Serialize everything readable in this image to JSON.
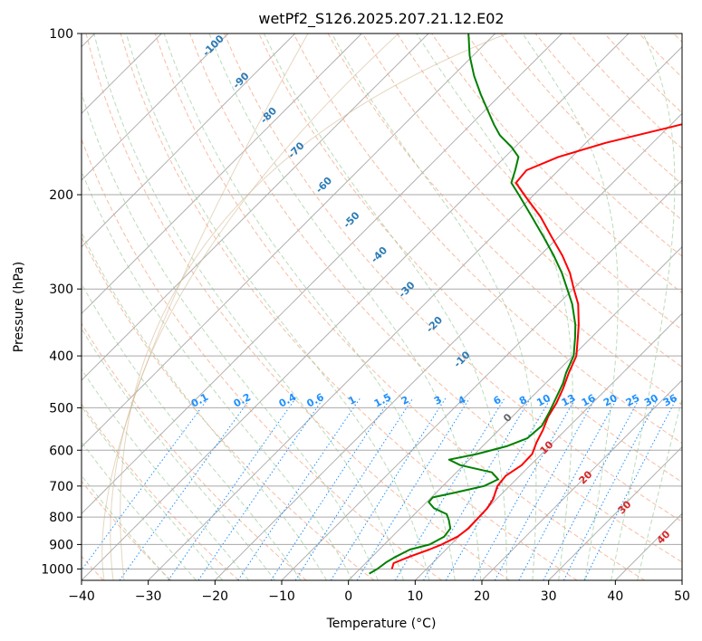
{
  "chart_data": {
    "type": "line",
    "title": "wetPf2_S126.2025.207.21.12.E02",
    "xlabel": "Temperature (°C)",
    "ylabel": "Pressure (hPa)",
    "xlim": [
      -40,
      50
    ],
    "ylim": [
      1050,
      100
    ],
    "y_scale": "log",
    "grid": true,
    "x_ticks": [
      -40,
      -30,
      -20,
      -10,
      0,
      10,
      20,
      30,
      40,
      50
    ],
    "y_ticks": [
      100,
      200,
      300,
      400,
      500,
      600,
      700,
      800,
      900,
      1000
    ],
    "series": [
      {
        "color": "#ff0000",
        "points": [
          [
            1000,
            4.8
          ],
          [
            975,
            4.2
          ],
          [
            950,
            5.5
          ],
          [
            920,
            7.5
          ],
          [
            900,
            8.6
          ],
          [
            870,
            9.8
          ],
          [
            840,
            10.2
          ],
          [
            800,
            10.1
          ],
          [
            770,
            10.0
          ],
          [
            740,
            9.5
          ],
          [
            700,
            8.2
          ],
          [
            670,
            7.9
          ],
          [
            640,
            8.7
          ],
          [
            610,
            8.6
          ],
          [
            580,
            7.5
          ],
          [
            550,
            6.6
          ],
          [
            520,
            5.4
          ],
          [
            490,
            4.6
          ],
          [
            460,
            3.4
          ],
          [
            430,
            1.9
          ],
          [
            400,
            0.5
          ],
          [
            370,
            -2.0
          ],
          [
            350,
            -3.8
          ],
          [
            320,
            -7.0
          ],
          [
            300,
            -9.9
          ],
          [
            280,
            -12.9
          ],
          [
            260,
            -16.6
          ],
          [
            240,
            -21.0
          ],
          [
            220,
            -25.7
          ],
          [
            200,
            -31.5
          ],
          [
            190,
            -34.5
          ],
          [
            180,
            -34.8
          ],
          [
            170,
            -32.0
          ],
          [
            160,
            -27.0
          ],
          [
            150,
            -20.0
          ],
          [
            140,
            -12.8
          ],
          [
            130,
            -7.5
          ],
          [
            120,
            -3.3
          ],
          [
            110,
            -0.3
          ],
          [
            100,
            2.7
          ]
        ]
      },
      {
        "color": "#008000",
        "points": [
          [
            1020,
            2.1
          ],
          [
            1000,
            2.6
          ],
          [
            970,
            3.0
          ],
          [
            950,
            3.5
          ],
          [
            920,
            4.6
          ],
          [
            900,
            6.8
          ],
          [
            870,
            7.8
          ],
          [
            840,
            7.5
          ],
          [
            810,
            6.0
          ],
          [
            790,
            4.8
          ],
          [
            770,
            2.0
          ],
          [
            750,
            0.3
          ],
          [
            735,
            0.2
          ],
          [
            720,
            2.8
          ],
          [
            700,
            6.2
          ],
          [
            680,
            7.3
          ],
          [
            660,
            5.3
          ],
          [
            640,
            -0.5
          ],
          [
            625,
            -3.0
          ],
          [
            610,
            0.3
          ],
          [
            590,
            3.6
          ],
          [
            570,
            5.5
          ],
          [
            540,
            5.8
          ],
          [
            510,
            4.9
          ],
          [
            480,
            3.8
          ],
          [
            450,
            2.6
          ],
          [
            430,
            1.5
          ],
          [
            400,
            0.1
          ],
          [
            370,
            -2.4
          ],
          [
            350,
            -4.3
          ],
          [
            320,
            -7.9
          ],
          [
            300,
            -10.9
          ],
          [
            280,
            -14.1
          ],
          [
            260,
            -17.9
          ],
          [
            240,
            -22.2
          ],
          [
            220,
            -27.0
          ],
          [
            200,
            -32.3
          ],
          [
            190,
            -35.2
          ],
          [
            180,
            -36.5
          ],
          [
            170,
            -38.0
          ],
          [
            163,
            -40.5
          ],
          [
            155,
            -44.0
          ],
          [
            148,
            -46.5
          ],
          [
            140,
            -49.3
          ],
          [
            130,
            -53.0
          ],
          [
            120,
            -56.8
          ],
          [
            110,
            -60.5
          ],
          [
            100,
            -64.0
          ]
        ]
      }
    ],
    "dry_adiabat_labels": [
      "-100",
      "-90",
      "-80",
      "-70",
      "-60",
      "-50",
      "-40",
      "-30",
      "-20",
      "-10"
    ],
    "dry_adiabat_label_color": "#2c7bb6",
    "mixing_ratio_labels": [
      "0.1",
      "0.2",
      "0.4",
      "0.6",
      "1",
      "1.5",
      "2",
      "3",
      "4",
      "6",
      "8",
      "10",
      "13",
      "16",
      "20",
      "25",
      "30",
      "36"
    ],
    "mixing_ratio_label_color": "#1e90ff",
    "moist_adiabat_labels": [
      "0",
      "10",
      "20",
      "30",
      "40"
    ],
    "moist_adiabat_label_colors": [
      "#666666",
      "#d62728",
      "#d62728",
      "#d62728",
      "#d62728"
    ]
  }
}
